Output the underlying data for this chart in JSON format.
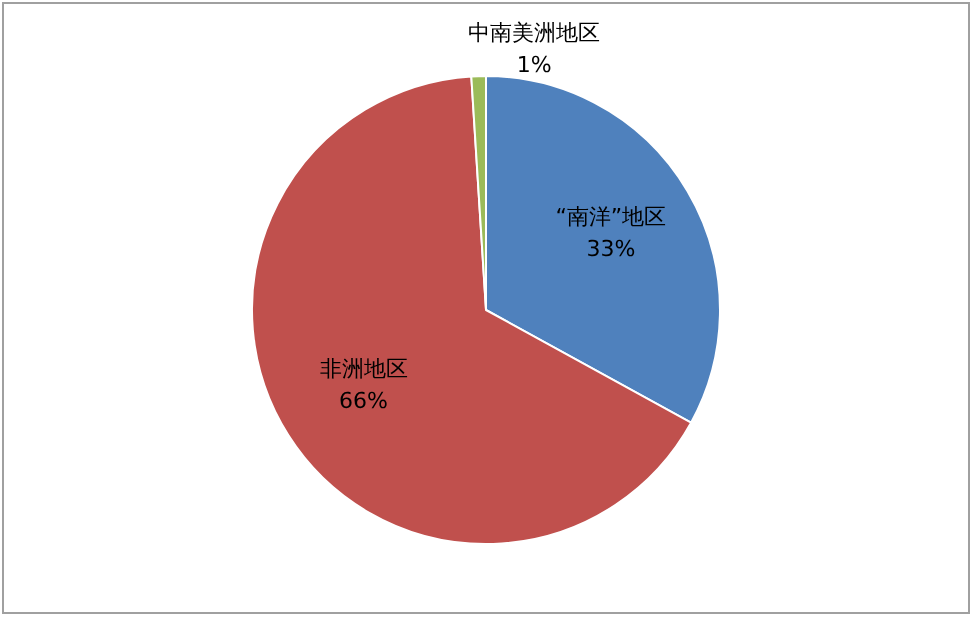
{
  "chart_data": {
    "type": "pie",
    "categories": [
      "“南洋”地区",
      "非洲地区",
      "中南美洲地区"
    ],
    "values": [
      33,
      66,
      1
    ],
    "colors": [
      "#4f81bd",
      "#c0504d",
      "#9bbb59"
    ],
    "value_labels": [
      "33%",
      "66%",
      "1%"
    ]
  }
}
